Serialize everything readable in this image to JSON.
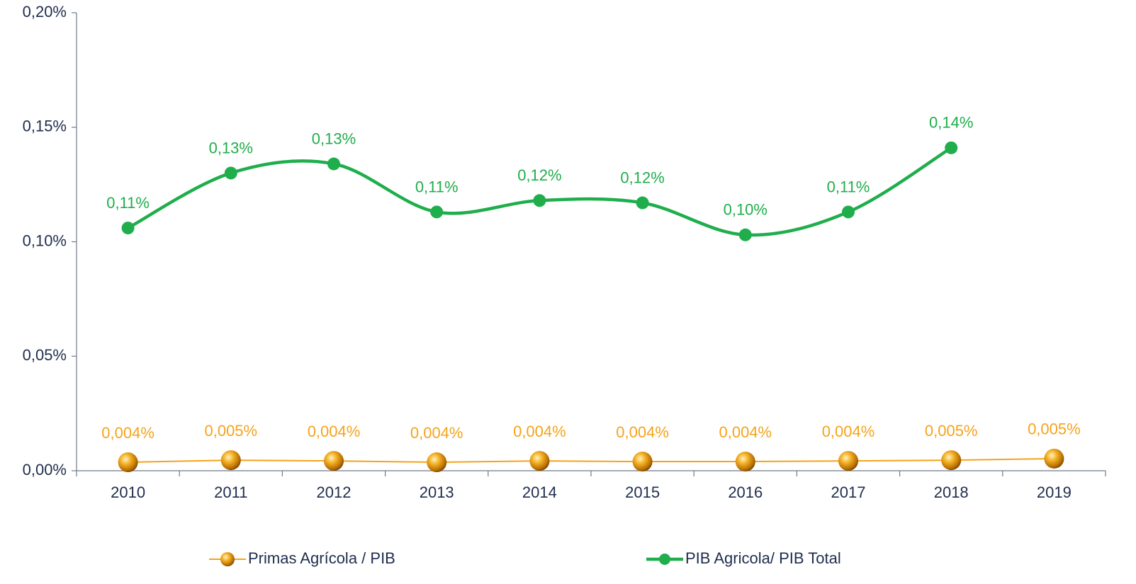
{
  "chart_data": {
    "type": "line",
    "categories": [
      "2010",
      "2011",
      "2012",
      "2013",
      "2014",
      "2015",
      "2016",
      "2017",
      "2018",
      "2019"
    ],
    "series": [
      {
        "name": "Primas Agrícola / PIB",
        "color": "#f5a31a",
        "smooth": false,
        "values": [
          0.0037,
          0.0046,
          0.0043,
          0.0037,
          0.0043,
          0.004,
          0.004,
          0.0043,
          0.0046,
          0.0053
        ],
        "value_labels": [
          "0,004%",
          "0,005%",
          "0,004%",
          "0,004%",
          "0,004%",
          "0,004%",
          "0,004%",
          "0,004%",
          "0,005%",
          "0,005%"
        ]
      },
      {
        "name": "PIB Agricola/ PIB Total",
        "color": "#1fae4b",
        "smooth": true,
        "values": [
          0.106,
          0.13,
          0.134,
          0.113,
          0.118,
          0.117,
          0.103,
          0.113,
          0.141,
          null
        ],
        "value_labels": [
          "0,11%",
          "0,13%",
          "0,13%",
          "0,11%",
          "0,12%",
          "0,12%",
          "0,10%",
          "0,11%",
          "0,14%",
          null
        ]
      }
    ],
    "ylim": [
      0,
      0.2
    ],
    "yticks": [
      {
        "value": 0,
        "label": "0,00%"
      },
      {
        "value": 0.05,
        "label": "0,05%"
      },
      {
        "value": 0.1,
        "label": "0,10%"
      },
      {
        "value": 0.15,
        "label": "0,15%"
      },
      {
        "value": 0.2,
        "label": "0,20%"
      }
    ],
    "grid": false,
    "legend": "bottom"
  }
}
